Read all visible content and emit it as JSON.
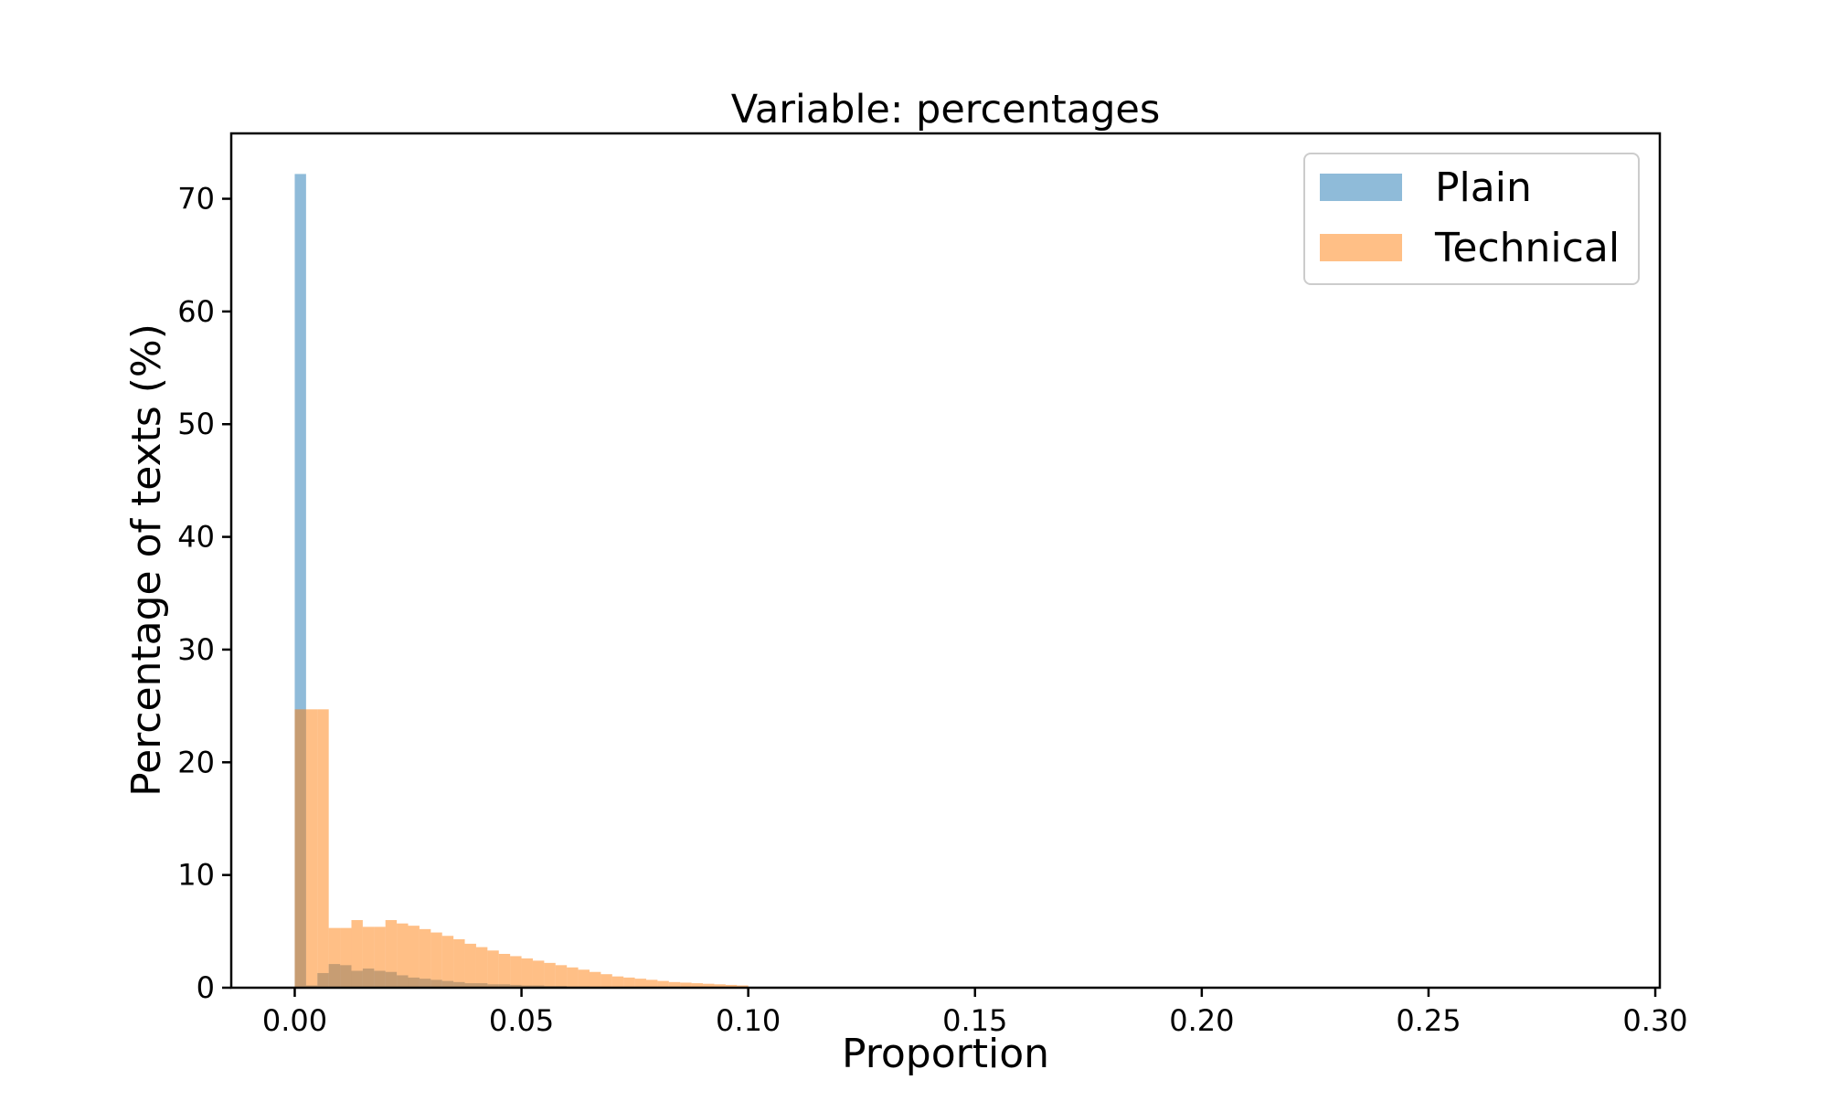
{
  "chart_data": {
    "type": "bar",
    "title": "Variable: percentages",
    "xlabel": "Proportion",
    "ylabel": "Percentage of texts (%)",
    "xlim": [
      -0.014,
      0.301
    ],
    "ylim": [
      0,
      75.8
    ],
    "xticks": [
      0.0,
      0.05,
      0.1,
      0.15,
      0.2,
      0.25,
      0.3
    ],
    "xtick_labels": [
      "0.00",
      "0.05",
      "0.10",
      "0.15",
      "0.20",
      "0.25",
      "0.30"
    ],
    "yticks": [
      0,
      10,
      20,
      30,
      40,
      50,
      60,
      70
    ],
    "ytick_labels": [
      "0",
      "10",
      "20",
      "30",
      "40",
      "50",
      "60",
      "70"
    ],
    "bin_width": 0.0025,
    "grid": false,
    "legend": {
      "position": "top-right"
    },
    "series": [
      {
        "name": "Plain",
        "color": "#1f77b4",
        "opacity": 0.5,
        "bin_start": 0.0,
        "values": [
          72.2,
          0.2,
          1.3,
          2.1,
          2.0,
          1.5,
          1.7,
          1.5,
          1.4,
          1.1,
          0.9,
          0.8,
          0.7,
          0.6,
          0.5,
          0.4,
          0.4,
          0.3,
          0.3,
          0.25,
          0.2,
          0.2,
          0.15,
          0.15,
          0.1,
          0.1,
          0.08,
          0.06,
          0.05,
          0.04,
          0.03,
          0.02,
          0.02,
          0.01,
          0.01
        ]
      },
      {
        "name": "Technical",
        "color": "#ff7f0e",
        "opacity": 0.5,
        "bin_start": 0.0,
        "values": [
          24.7,
          24.7,
          24.7,
          5.3,
          5.3,
          6.0,
          5.4,
          5.4,
          6.0,
          5.7,
          5.5,
          5.2,
          4.9,
          4.6,
          4.3,
          3.9,
          3.6,
          3.3,
          3.0,
          2.8,
          2.6,
          2.4,
          2.2,
          2.0,
          1.8,
          1.6,
          1.4,
          1.2,
          1.0,
          0.9,
          0.8,
          0.7,
          0.6,
          0.5,
          0.45,
          0.4,
          0.35,
          0.3,
          0.25,
          0.2
        ]
      }
    ]
  }
}
